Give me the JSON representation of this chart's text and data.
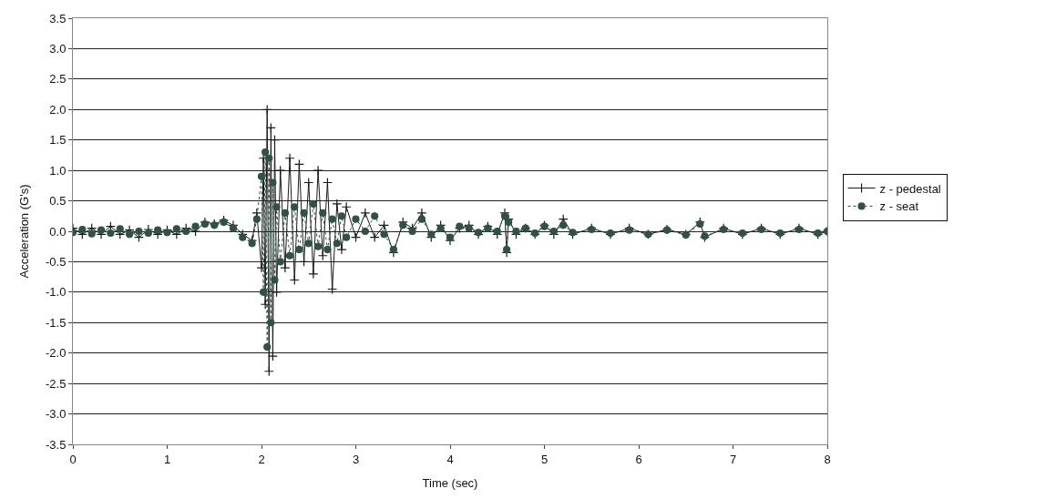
{
  "chart_data": {
    "type": "line",
    "xlabel": "Time (sec)",
    "ylabel": "Acceleration (G's)",
    "xlim": [
      0,
      8
    ],
    "xticks": [
      0,
      1,
      2,
      3,
      4,
      5,
      6,
      7,
      8
    ],
    "ylim": [
      -3.5,
      3.5
    ],
    "yticks": [
      {
        "value": 3.5,
        "label": "3.5"
      },
      {
        "value": 3.0,
        "label": "3.0"
      },
      {
        "value": 2.5,
        "label": "2.5"
      },
      {
        "value": 2.0,
        "label": "2.0"
      },
      {
        "value": 1.5,
        "label": "1.5"
      },
      {
        "value": 1.0,
        "label": "1.0"
      },
      {
        "value": 0.5,
        "label": "0.5"
      },
      {
        "value": 0.0,
        "label": "0.0"
      },
      {
        "value": -0.5,
        "label": "-0.5"
      },
      {
        "value": -1.0,
        "label": "-1.0"
      },
      {
        "value": -1.5,
        "label": "-1.5"
      },
      {
        "value": -2.0,
        "label": "-2.0"
      },
      {
        "value": -2.5,
        "label": "-2.5"
      },
      {
        "value": -3.0,
        "label": "-3.0"
      },
      {
        "value": -3.5,
        "label": "-3.5"
      }
    ],
    "grid": "y",
    "legend": "right",
    "series": [
      {
        "name": "z - pedestal",
        "color": "#1a1a1a",
        "marker": "cross",
        "line_style": "solid",
        "x": [
          0,
          0.1,
          0.2,
          0.3,
          0.4,
          0.5,
          0.6,
          0.7,
          0.8,
          0.9,
          1.0,
          1.1,
          1.2,
          1.3,
          1.4,
          1.5,
          1.6,
          1.7,
          1.8,
          1.9,
          1.95,
          2.0,
          2.02,
          2.04,
          2.06,
          2.08,
          2.1,
          2.12,
          2.14,
          2.16,
          2.2,
          2.25,
          2.3,
          2.35,
          2.4,
          2.45,
          2.5,
          2.55,
          2.6,
          2.65,
          2.7,
          2.75,
          2.8,
          2.85,
          2.9,
          3.0,
          3.1,
          3.2,
          3.3,
          3.4,
          3.5,
          3.6,
          3.7,
          3.8,
          3.9,
          4.0,
          4.1,
          4.2,
          4.3,
          4.4,
          4.5,
          4.58,
          4.6,
          4.62,
          4.7,
          4.8,
          4.9,
          5.0,
          5.1,
          5.2,
          5.3,
          5.5,
          5.7,
          5.9,
          6.1,
          6.3,
          6.5,
          6.65,
          6.7,
          6.9,
          7.1,
          7.3,
          7.5,
          7.7,
          7.9,
          8.0
        ],
        "values": [
          0.05,
          -0.05,
          0.05,
          -0.05,
          0.08,
          -0.05,
          0.02,
          -0.1,
          0.03,
          -0.05,
          0.02,
          -0.05,
          0.05,
          0.0,
          0.15,
          0.12,
          0.18,
          0.1,
          -0.05,
          -0.15,
          0.3,
          -0.6,
          1.2,
          -1.2,
          2.0,
          -2.3,
          1.7,
          -2.05,
          1.5,
          -1.0,
          1.0,
          -0.6,
          1.2,
          -0.8,
          1.1,
          -0.5,
          0.8,
          -0.7,
          1.0,
          -0.4,
          0.8,
          -0.95,
          0.45,
          -0.3,
          0.4,
          -0.1,
          0.3,
          -0.1,
          0.1,
          -0.35,
          0.15,
          0.05,
          0.3,
          -0.1,
          0.1,
          -0.15,
          0.05,
          0.1,
          -0.05,
          0.08,
          -0.05,
          0.3,
          -0.35,
          0.2,
          -0.05,
          0.05,
          -0.05,
          0.1,
          -0.05,
          0.2,
          -0.05,
          0.05,
          -0.05,
          0.05,
          -0.05,
          0.03,
          -0.05,
          0.15,
          -0.1,
          0.05,
          -0.05,
          0.05,
          -0.05,
          0.05,
          -0.05,
          0.0
        ]
      },
      {
        "name": "z - seat",
        "color": "#2f5247",
        "marker": "circle",
        "line_style": "dotted",
        "x": [
          0,
          0.1,
          0.2,
          0.3,
          0.4,
          0.5,
          0.6,
          0.7,
          0.8,
          0.9,
          1.0,
          1.1,
          1.2,
          1.3,
          1.4,
          1.5,
          1.6,
          1.7,
          1.8,
          1.9,
          1.95,
          2.0,
          2.02,
          2.04,
          2.06,
          2.08,
          2.1,
          2.12,
          2.14,
          2.16,
          2.2,
          2.25,
          2.3,
          2.35,
          2.4,
          2.45,
          2.5,
          2.55,
          2.6,
          2.65,
          2.7,
          2.75,
          2.8,
          2.85,
          2.9,
          3.0,
          3.1,
          3.2,
          3.3,
          3.4,
          3.5,
          3.6,
          3.7,
          3.8,
          3.9,
          4.0,
          4.1,
          4.2,
          4.3,
          4.4,
          4.5,
          4.58,
          4.6,
          4.62,
          4.7,
          4.8,
          4.9,
          5.0,
          5.1,
          5.2,
          5.3,
          5.5,
          5.7,
          5.9,
          6.1,
          6.3,
          6.5,
          6.65,
          6.7,
          6.9,
          7.1,
          7.3,
          7.5,
          7.7,
          7.9,
          8.0
        ],
        "values": [
          -0.02,
          0.03,
          -0.04,
          0.02,
          -0.03,
          0.04,
          -0.05,
          0.0,
          -0.03,
          0.02,
          -0.02,
          0.04,
          0.0,
          0.08,
          0.12,
          0.1,
          0.15,
          0.05,
          -0.1,
          -0.2,
          0.2,
          0.9,
          -1.0,
          1.3,
          -1.9,
          1.2,
          -1.5,
          0.8,
          -0.8,
          0.4,
          -0.5,
          0.3,
          -0.4,
          0.4,
          -0.3,
          0.3,
          -0.2,
          0.45,
          -0.25,
          0.3,
          -0.3,
          0.2,
          -0.2,
          0.25,
          -0.1,
          0.2,
          0.0,
          0.25,
          -0.05,
          -0.3,
          0.1,
          0.0,
          0.2,
          -0.05,
          0.05,
          -0.1,
          0.08,
          0.05,
          -0.02,
          0.05,
          0.0,
          0.25,
          -0.3,
          0.15,
          0.0,
          0.05,
          -0.03,
          0.08,
          0.0,
          0.1,
          -0.02,
          0.03,
          -0.03,
          0.02,
          -0.05,
          0.02,
          -0.06,
          0.12,
          -0.08,
          0.03,
          -0.03,
          0.03,
          -0.03,
          0.03,
          -0.03,
          0.0
        ]
      }
    ]
  }
}
